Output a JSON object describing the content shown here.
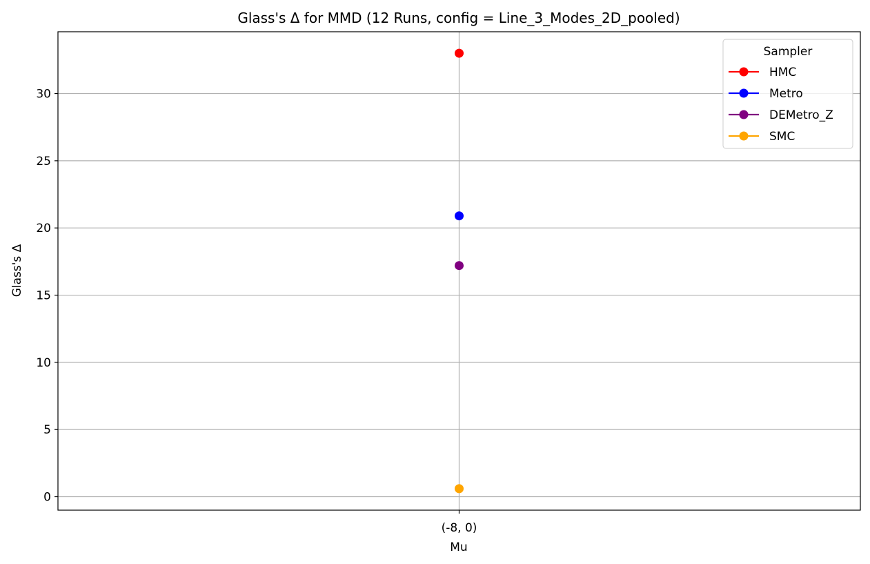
{
  "chart_data": {
    "type": "scatter",
    "title": "Glass's Δ for MMD (12 Runs, config = Line_3_Modes_2D_pooled)",
    "xlabel": "Mu",
    "ylabel": "Glass's Δ",
    "categories": [
      "(-8, 0)"
    ],
    "ylim": [
      -1.0,
      34.6
    ],
    "yticks": [
      0,
      5,
      10,
      15,
      20,
      25,
      30
    ],
    "grid": true,
    "legend": {
      "title": "Sampler",
      "placement": "top-right"
    },
    "series": [
      {
        "name": "HMC",
        "color": "#ff0000",
        "values": [
          33.0
        ]
      },
      {
        "name": "Metro",
        "color": "#0000ff",
        "values": [
          20.9
        ]
      },
      {
        "name": "DEMetro_Z",
        "color": "#800080",
        "values": [
          17.2
        ]
      },
      {
        "name": "SMC",
        "color": "#ffa500",
        "values": [
          0.6
        ]
      }
    ]
  }
}
